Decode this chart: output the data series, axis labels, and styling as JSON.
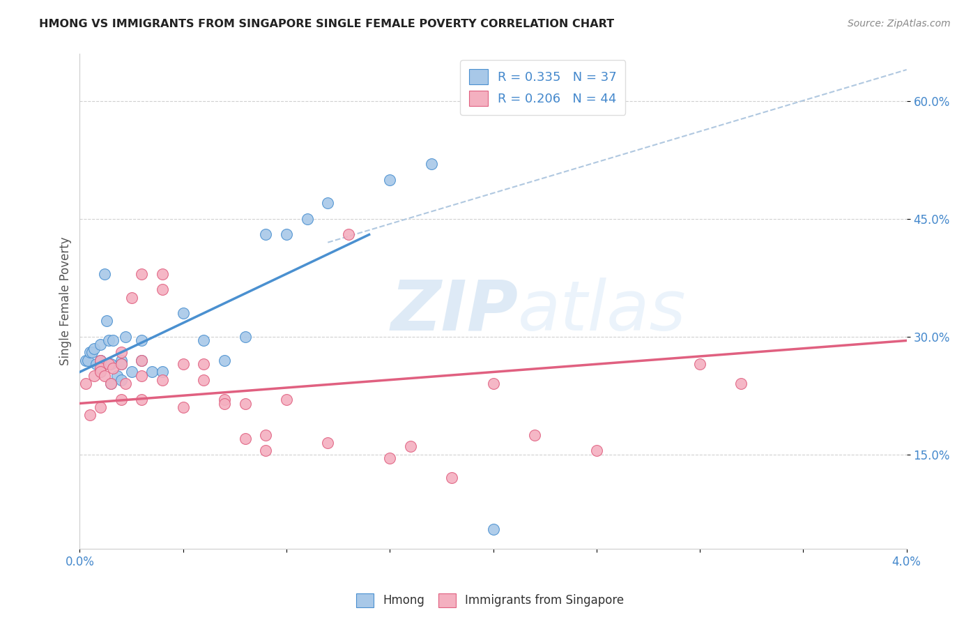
{
  "title": "HMONG VS IMMIGRANTS FROM SINGAPORE SINGLE FEMALE POVERTY CORRELATION CHART",
  "source": "Source: ZipAtlas.com",
  "ylabel": "Single Female Poverty",
  "xlim": [
    0.0,
    0.04
  ],
  "ylim": [
    0.03,
    0.66
  ],
  "xticks": [
    0.0,
    0.005,
    0.01,
    0.015,
    0.02,
    0.025,
    0.03,
    0.035,
    0.04
  ],
  "xtick_labels_show": [
    "0.0%",
    "",
    "",
    "",
    "",
    "",
    "",
    "",
    "4.0%"
  ],
  "yticks": [
    0.15,
    0.3,
    0.45,
    0.6
  ],
  "ytick_labels": [
    "15.0%",
    "30.0%",
    "45.0%",
    "60.0%"
  ],
  "watermark_zip": "ZIP",
  "watermark_atlas": "atlas",
  "legend_entry1": "R = 0.335   N = 37",
  "legend_entry2": "R = 0.206   N = 44",
  "hmong_color": "#a8c8e8",
  "singapore_color": "#f4b0c0",
  "hmong_line_color": "#4a90d0",
  "singapore_line_color": "#e06080",
  "dashed_line_color": "#b0c8e0",
  "background_color": "#ffffff",
  "grid_color": "#d0d0d0",
  "hmong_x": [
    0.0003,
    0.0004,
    0.0005,
    0.0006,
    0.0007,
    0.0008,
    0.001,
    0.001,
    0.001,
    0.001,
    0.0012,
    0.0013,
    0.0014,
    0.0015,
    0.0015,
    0.0016,
    0.0018,
    0.002,
    0.002,
    0.002,
    0.0022,
    0.0025,
    0.003,
    0.003,
    0.0035,
    0.004,
    0.005,
    0.006,
    0.007,
    0.008,
    0.009,
    0.01,
    0.011,
    0.012,
    0.015,
    0.017,
    0.02
  ],
  "hmong_y": [
    0.27,
    0.27,
    0.28,
    0.28,
    0.285,
    0.265,
    0.27,
    0.27,
    0.255,
    0.29,
    0.38,
    0.32,
    0.295,
    0.265,
    0.24,
    0.295,
    0.25,
    0.27,
    0.265,
    0.245,
    0.3,
    0.255,
    0.295,
    0.27,
    0.255,
    0.255,
    0.33,
    0.295,
    0.27,
    0.3,
    0.43,
    0.43,
    0.45,
    0.47,
    0.5,
    0.52,
    0.055
  ],
  "singapore_x": [
    0.0003,
    0.0005,
    0.0007,
    0.001,
    0.001,
    0.001,
    0.001,
    0.0012,
    0.0014,
    0.0015,
    0.0016,
    0.002,
    0.002,
    0.002,
    0.0022,
    0.0025,
    0.003,
    0.003,
    0.003,
    0.003,
    0.004,
    0.004,
    0.004,
    0.005,
    0.005,
    0.006,
    0.006,
    0.007,
    0.007,
    0.008,
    0.008,
    0.009,
    0.009,
    0.01,
    0.012,
    0.013,
    0.015,
    0.016,
    0.018,
    0.02,
    0.022,
    0.025,
    0.03,
    0.032
  ],
  "singapore_y": [
    0.24,
    0.2,
    0.25,
    0.27,
    0.26,
    0.255,
    0.21,
    0.25,
    0.265,
    0.24,
    0.26,
    0.265,
    0.22,
    0.28,
    0.24,
    0.35,
    0.38,
    0.27,
    0.25,
    0.22,
    0.36,
    0.38,
    0.245,
    0.265,
    0.21,
    0.265,
    0.245,
    0.22,
    0.215,
    0.215,
    0.17,
    0.175,
    0.155,
    0.22,
    0.165,
    0.43,
    0.145,
    0.16,
    0.12,
    0.24,
    0.175,
    0.155,
    0.265,
    0.24
  ],
  "hmong_line_x": [
    0.0,
    0.014
  ],
  "hmong_line_y": [
    0.255,
    0.43
  ],
  "singapore_line_x": [
    0.0,
    0.04
  ],
  "singapore_line_y": [
    0.215,
    0.295
  ],
  "dashed_line_x": [
    0.012,
    0.04
  ],
  "dashed_line_y": [
    0.42,
    0.64
  ]
}
